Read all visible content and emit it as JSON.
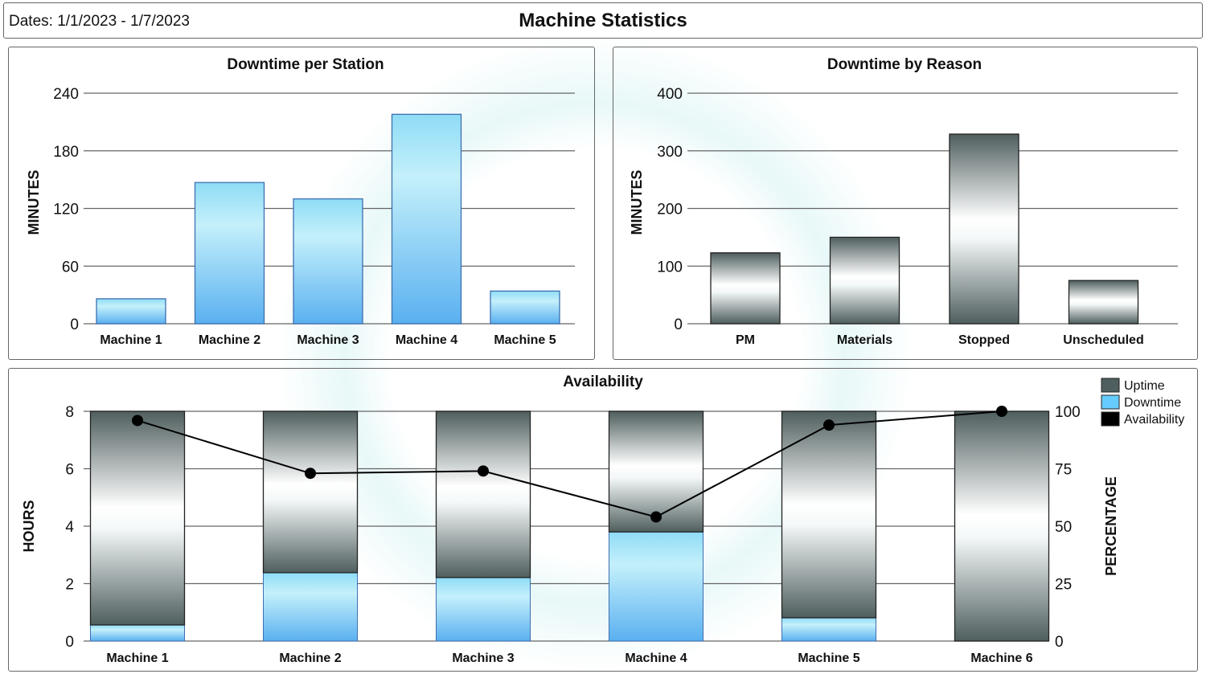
{
  "header": {
    "dates": "Dates: 1/1/2023 - 1/7/2023",
    "title": "Machine Statistics"
  },
  "colors": {
    "downtime": "#66ccff",
    "uptime": "#4f5e5e",
    "availability": "#000000",
    "grid": "#666666"
  },
  "chart_data": [
    {
      "type": "bar",
      "title": "Downtime per Station",
      "ylabel": "MINUTES",
      "ylim": [
        0,
        240
      ],
      "yticks": [
        0,
        60,
        120,
        180,
        240
      ],
      "grid": true,
      "categories": [
        "Machine 1",
        "Machine 2",
        "Machine  3",
        "Machine 4",
        "Machine 5"
      ],
      "values": [
        26,
        147,
        130,
        218,
        34
      ]
    },
    {
      "type": "bar",
      "title": "Downtime by Reason",
      "ylabel": "MINUTES",
      "ylim": [
        0,
        400
      ],
      "yticks": [
        0,
        100,
        200,
        300,
        400
      ],
      "grid": true,
      "categories": [
        "PM",
        "Materials",
        "Stopped",
        "Unscheduled"
      ],
      "values": [
        123,
        150,
        329,
        75
      ]
    },
    {
      "type": "bar",
      "title": "Availability",
      "ylabel": "HOURS",
      "y2label": "PERCENTAGE",
      "ylim": [
        0,
        8
      ],
      "y2lim": [
        0,
        100
      ],
      "yticks": [
        0,
        2,
        4,
        6,
        8
      ],
      "y2ticks": [
        0,
        25,
        50,
        75,
        100
      ],
      "grid": true,
      "stacked": true,
      "legend": "top-right",
      "categories": [
        "Machine 1",
        "Machine 2",
        "Machine  3",
        "Machine 4",
        "Machine 5",
        "Machine 6"
      ],
      "series": [
        {
          "name": "Downtime",
          "type": "bar",
          "values": [
            0.56,
            2.38,
            2.21,
            3.8,
            0.81,
            0
          ]
        },
        {
          "name": "Uptime",
          "type": "bar",
          "values": [
            7.44,
            5.62,
            5.79,
            4.2,
            7.19,
            8
          ]
        },
        {
          "name": "Availability",
          "type": "line",
          "axis": "y2",
          "values": [
            96,
            73,
            74,
            54,
            94,
            100
          ]
        }
      ]
    }
  ]
}
